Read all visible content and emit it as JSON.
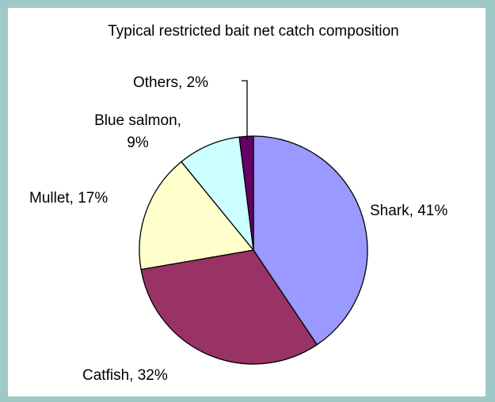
{
  "chart_data": {
    "type": "pie",
    "title": "Typical restricted bait net catch composition",
    "slices": [
      {
        "label": "Shark, 41%",
        "value": 41,
        "color": "#9999ff"
      },
      {
        "label": "Catfish, 32%",
        "value": 32,
        "color": "#993366"
      },
      {
        "label": "Mullet, 17%",
        "value": 17,
        "color": "#ffffcc"
      },
      {
        "label_lines": [
          "Blue salmon,",
          "9%"
        ],
        "value": 9,
        "color": "#ccffff"
      },
      {
        "label": "Others, 2%",
        "value": 2,
        "color": "#660066"
      }
    ],
    "start": "12 o'clock",
    "direction": "clockwise",
    "legend": "none"
  },
  "colors": {
    "background": "#9ec9c6",
    "panel": "#ffffff",
    "outline": "#000000"
  }
}
